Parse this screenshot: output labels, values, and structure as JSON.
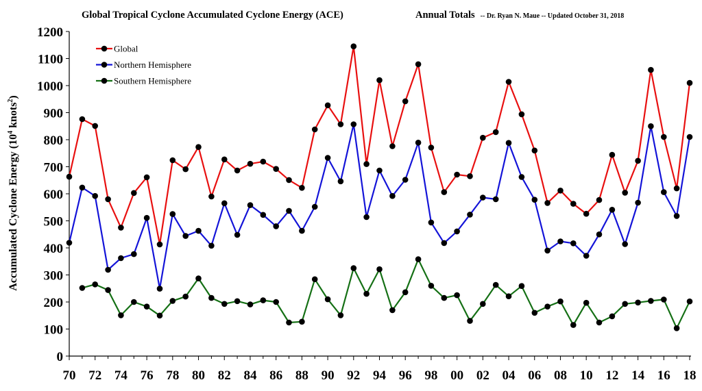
{
  "chart_data": {
    "type": "line",
    "title": "Global Tropical Cyclone Accumulated Cyclone Energy (ACE)",
    "subtitle_main": "Annual Totals",
    "subtitle_note": "-- Dr. Ryan N. Maue -- Updated  October 31, 2018",
    "ylabel_main": "Accumulated Cyclone Energy (10",
    "ylabel_sup1": "4",
    "ylabel_mid": " knots",
    "ylabel_sup2": "2",
    "ylabel_end": ")",
    "ylim": [
      0,
      1200
    ],
    "yticks": [
      0,
      100,
      200,
      300,
      400,
      500,
      600,
      700,
      800,
      900,
      1000,
      1100,
      1200
    ],
    "xlabels": [
      "70",
      "72",
      "74",
      "76",
      "78",
      "80",
      "82",
      "84",
      "86",
      "88",
      "90",
      "92",
      "94",
      "96",
      "98",
      "00",
      "02",
      "04",
      "06",
      "08",
      "10",
      "12",
      "14",
      "16",
      "18"
    ],
    "x": [
      "1970",
      "1971",
      "1972",
      "1973",
      "1974",
      "1975",
      "1976",
      "1977",
      "1978",
      "1979",
      "1980",
      "1981",
      "1982",
      "1983",
      "1984",
      "1985",
      "1986",
      "1987",
      "1988",
      "1989",
      "1990",
      "1991",
      "1992",
      "1993",
      "1994",
      "1995",
      "1996",
      "1997",
      "1998",
      "1999",
      "2000",
      "2001",
      "2002",
      "2003",
      "2004",
      "2005",
      "2006",
      "2007",
      "2008",
      "2009",
      "2010",
      "2011",
      "2012",
      "2013",
      "2014",
      "2015",
      "2016",
      "2017",
      "2018"
    ],
    "legend_position": "top-left",
    "series": [
      {
        "name": "Global",
        "color": "#e81010",
        "values": [
          663,
          876,
          851,
          580,
          475,
          603,
          661,
          413,
          724,
          691,
          773,
          590,
          727,
          686,
          711,
          719,
          692,
          651,
          622,
          838,
          927,
          857,
          1145,
          710,
          1020,
          776,
          942,
          1079,
          771,
          606,
          671,
          665,
          807,
          828,
          1014,
          894,
          760,
          566,
          612,
          563,
          526,
          577,
          744,
          604,
          722,
          1058,
          810,
          620,
          1010
        ]
      },
      {
        "name": "Northern Hemisphere",
        "color": "#1414d8",
        "values": [
          419,
          623,
          592,
          319,
          362,
          377,
          511,
          249,
          525,
          444,
          463,
          408,
          565,
          448,
          558,
          522,
          480,
          537,
          463,
          552,
          733,
          646,
          857,
          514,
          686,
          592,
          652,
          789,
          494,
          418,
          461,
          523,
          586,
          580,
          788,
          662,
          578,
          390,
          424,
          417,
          371,
          450,
          541,
          414,
          567,
          850,
          606,
          518,
          810
        ]
      },
      {
        "name": "Southern Hemisphere",
        "color": "#157015",
        "values": [
          null,
          252,
          265,
          244,
          151,
          200,
          183,
          150,
          204,
          220,
          287,
          215,
          193,
          203,
          191,
          206,
          200,
          124,
          127,
          284,
          210,
          151,
          325,
          230,
          321,
          170,
          236,
          358,
          260,
          215,
          225,
          130,
          193,
          263,
          221,
          259,
          160,
          183,
          202,
          115,
          197,
          124,
          147,
          193,
          198,
          204,
          209,
          103,
          202
        ]
      }
    ]
  }
}
